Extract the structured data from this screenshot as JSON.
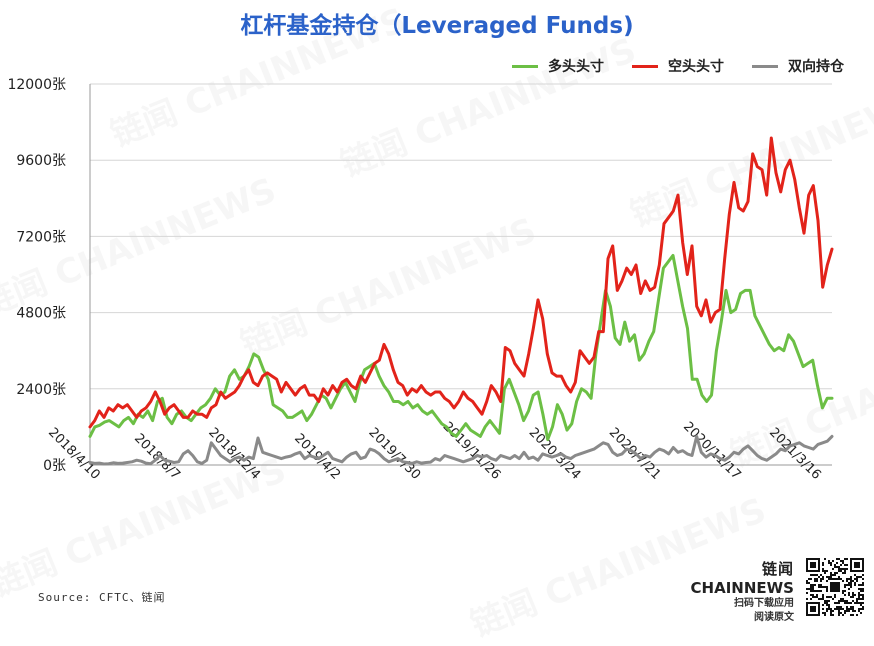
{
  "chart_data": {
    "type": "line",
    "title": "杠杆基金持仓（Leveraged Funds)",
    "yticks": [
      "0张",
      "2400张",
      "4800张",
      "7200张",
      "9600张",
      "12000张"
    ],
    "ylim": [
      0,
      12000
    ],
    "xlabels": [
      "2018/4/10",
      "2018/8/7",
      "2018/12/4",
      "2019/4/2",
      "2019/7/30",
      "2019/11/26",
      "2020/3/24",
      "2020/7/21",
      "2020/11/17",
      "2021/3/16"
    ],
    "grid": true,
    "legend_position": "top-right",
    "series": [
      {
        "name": "多头头寸",
        "color": "#6cbf45",
        "values": [
          900,
          1200,
          1250,
          1350,
          1400,
          1300,
          1200,
          1400,
          1500,
          1300,
          1600,
          1500,
          1700,
          1400,
          2000,
          2100,
          1500,
          1300,
          1600,
          1700,
          1500,
          1400,
          1600,
          1800,
          1900,
          2100,
          2400,
          2200,
          2300,
          2800,
          3000,
          2700,
          2800,
          3100,
          3500,
          3400,
          3000,
          2700,
          1900,
          1800,
          1700,
          1500,
          1500,
          1600,
          1700,
          1400,
          1600,
          1900,
          2200,
          2100,
          1800,
          2100,
          2400,
          2600,
          2300,
          2000,
          2600,
          3000,
          3100,
          3200,
          2800,
          2500,
          2300,
          2000,
          2000,
          1900,
          2000,
          1800,
          1900,
          1700,
          1600,
          1700,
          1500,
          1300,
          1200,
          1000,
          900,
          1100,
          1300,
          1100,
          1000,
          900,
          1200,
          1400,
          1200,
          1000,
          2400,
          2700,
          2300,
          1900,
          1400,
          1700,
          2200,
          2300,
          1600,
          800,
          1200,
          1900,
          1600,
          1100,
          1300,
          2000,
          2400,
          2300,
          2100,
          3500,
          4500,
          5500,
          5000,
          4000,
          3800,
          4500,
          3900,
          4100,
          3300,
          3500,
          3900,
          4200,
          5200,
          6200,
          6400,
          6600,
          5800,
          5000,
          4300,
          2700,
          2700,
          2200,
          2000,
          2200,
          3600,
          4500,
          5500,
          4800,
          4900,
          5400,
          5500,
          5500,
          4700,
          4400,
          4100,
          3800,
          3600,
          3700,
          3600,
          4100,
          3900,
          3500,
          3100,
          3200,
          3300,
          2500,
          1800,
          2100,
          2100
        ]
      },
      {
        "name": "空头头寸",
        "color": "#e2231a",
        "values": [
          1200,
          1400,
          1700,
          1500,
          1800,
          1700,
          1900,
          1800,
          1900,
          1700,
          1500,
          1700,
          1800,
          2000,
          2300,
          2000,
          1600,
          1800,
          1900,
          1700,
          1500,
          1500,
          1700,
          1600,
          1600,
          1500,
          1800,
          1900,
          2300,
          2100,
          2200,
          2300,
          2500,
          2800,
          3000,
          2600,
          2500,
          2800,
          2900,
          2800,
          2700,
          2300,
          2600,
          2400,
          2200,
          2400,
          2500,
          2200,
          2200,
          2000,
          2400,
          2200,
          2500,
          2300,
          2600,
          2700,
          2500,
          2400,
          2800,
          2600,
          2900,
          3200,
          3300,
          3800,
          3500,
          3000,
          2600,
          2500,
          2200,
          2400,
          2300,
          2500,
          2300,
          2200,
          2300,
          2300,
          2100,
          2000,
          1800,
          2000,
          2300,
          2100,
          2000,
          1800,
          1600,
          2000,
          2500,
          2300,
          2000,
          3700,
          3600,
          3200,
          3000,
          2800,
          3500,
          4300,
          5200,
          4600,
          3500,
          2900,
          2800,
          2800,
          2500,
          2300,
          2600,
          3600,
          3400,
          3200,
          3400,
          4200,
          4200,
          6500,
          6900,
          5500,
          5800,
          6200,
          6000,
          6300,
          5400,
          5800,
          5500,
          5600,
          6300,
          7600,
          7800,
          8000,
          8500,
          7000,
          6000,
          6900,
          5000,
          4700,
          5200,
          4500,
          4800,
          4900,
          6500,
          7900,
          8900,
          8100,
          8000,
          8300,
          9800,
          9400,
          9300,
          8500,
          10300,
          9200,
          8600,
          9300,
          9600,
          9000,
          8100,
          7300,
          8500,
          8800,
          7700,
          5600,
          6300,
          6800
        ]
      },
      {
        "name": "双向持仓",
        "color": "#8a8a8a",
        "values": [
          80,
          50,
          60,
          30,
          40,
          70,
          50,
          60,
          80,
          100,
          150,
          120,
          60,
          40,
          150,
          300,
          150,
          120,
          80,
          100,
          350,
          450,
          300,
          100,
          50,
          150,
          700,
          500,
          300,
          200,
          100,
          200,
          250,
          150,
          250,
          200,
          850,
          400,
          350,
          300,
          250,
          200,
          250,
          280,
          350,
          400,
          200,
          300,
          250,
          200,
          300,
          400,
          200,
          150,
          100,
          250,
          350,
          400,
          200,
          250,
          500,
          450,
          350,
          200,
          100,
          150,
          200,
          100,
          80,
          50,
          100,
          60,
          80,
          90,
          200,
          150,
          300,
          250,
          200,
          150,
          100,
          150,
          200,
          300,
          250,
          300,
          200,
          150,
          300,
          250,
          200,
          300,
          200,
          400,
          200,
          250,
          150,
          350,
          300,
          250,
          300,
          350,
          250,
          200,
          300,
          350,
          400,
          450,
          500,
          600,
          700,
          650,
          400,
          300,
          350,
          500,
          450,
          350,
          200,
          300,
          250,
          400,
          500,
          450,
          350,
          550,
          400,
          450,
          350,
          300,
          900,
          400,
          250,
          350,
          300,
          200,
          150,
          250,
          400,
          350,
          500,
          600,
          450,
          300,
          200,
          150,
          250,
          350,
          500,
          450,
          600,
          650,
          700,
          600,
          550,
          500,
          650,
          700,
          750,
          900
        ]
      }
    ]
  },
  "source": "Source: CFTC、链闻",
  "brand": {
    "name_cn": "链闻",
    "name_en": "CHAINNEWS",
    "line1": "扫码下载应用",
    "line2": "阅读原文"
  },
  "watermark_text": "链闻 CHAINNEWS"
}
